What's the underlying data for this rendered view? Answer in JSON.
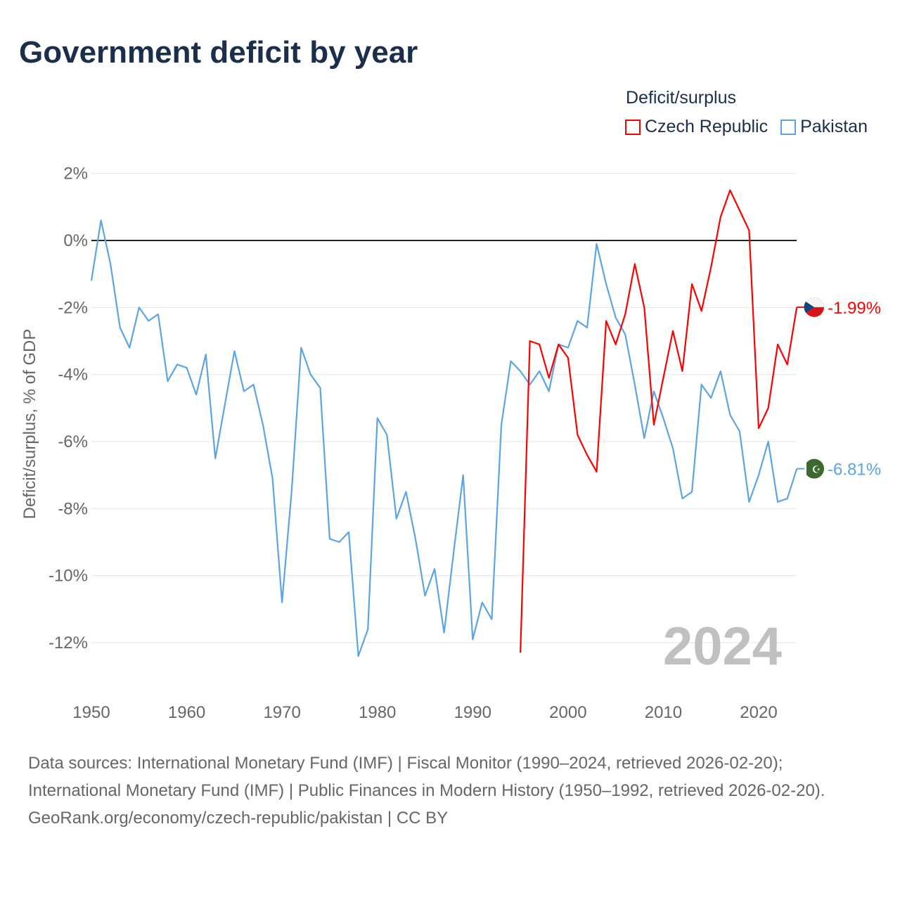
{
  "title": "Government deficit by year",
  "chart_data": {
    "type": "line",
    "title": "Government deficit by year",
    "xlabel": "",
    "ylabel": "Deficit/surplus, % of GDP",
    "xlim": [
      1950,
      2024
    ],
    "ylim": [
      -13,
      2
    ],
    "x_ticks": [
      1950,
      1960,
      1970,
      1980,
      1990,
      2000,
      2010,
      2020
    ],
    "y_ticks": [
      2,
      0,
      -2,
      -4,
      -6,
      -8,
      -10,
      -12
    ],
    "y_tick_labels": [
      "2%",
      "0%",
      "-2%",
      "-4%",
      "-6%",
      "-8%",
      "-10%",
      "-12%"
    ],
    "x_tick_labels": [
      "1950",
      "1960",
      "1970",
      "1980",
      "1990",
      "2000",
      "2010",
      "2020"
    ],
    "legend_title": "Deficit/surplus",
    "legend_placement": "top-right",
    "year_watermark": "2024",
    "series": [
      {
        "name": "Czech Republic",
        "color": "#ff0000",
        "end_label": "-1.99%",
        "start_year": 1995,
        "values": [
          -12.3,
          -3.0,
          -3.1,
          -4.1,
          -3.1,
          -3.5,
          -5.8,
          -6.4,
          -6.9,
          -2.4,
          -3.1,
          -2.2,
          -0.7,
          -2.0,
          -5.5,
          -4.1,
          -2.7,
          -3.9,
          -1.3,
          -2.1,
          -0.8,
          0.7,
          1.5,
          0.9,
          0.3,
          -5.6,
          -5.0,
          -3.1,
          -3.7,
          -1.99
        ]
      },
      {
        "name": "Pakistan",
        "color": "#5ba4e6",
        "end_label": "-6.81%",
        "start_year": 1950,
        "values": [
          -1.2,
          0.6,
          -0.7,
          -2.6,
          -3.2,
          -2.0,
          -2.4,
          -2.2,
          -4.2,
          -3.7,
          -3.8,
          -4.6,
          -3.4,
          -6.5,
          -4.9,
          -3.3,
          -4.5,
          -4.3,
          -5.5,
          -7.1,
          -10.8,
          -7.5,
          -3.2,
          -4.0,
          -4.4,
          -8.9,
          -9.0,
          -8.7,
          -12.4,
          -11.6,
          -5.3,
          -5.8,
          -8.3,
          -7.5,
          -8.9,
          -10.6,
          -9.8,
          -11.7,
          -9.3,
          -7.0,
          -11.9,
          -10.8,
          -11.3,
          -5.5,
          -3.6,
          -3.9,
          -4.3,
          -3.9,
          -4.5,
          -3.1,
          -3.2,
          -2.4,
          -2.6,
          -0.1,
          -1.3,
          -2.3,
          -2.8,
          -4.3,
          -5.9,
          -4.5,
          -5.3,
          -6.2,
          -7.7,
          -7.5,
          -4.3,
          -4.7,
          -3.9,
          -5.2,
          -5.7,
          -7.8,
          -7.0,
          -6.0,
          -7.8,
          -7.7,
          -6.81
        ]
      }
    ]
  },
  "footer": {
    "sources": "Data sources: International Monetary Fund (IMF) | Fiscal Monitor (1990–2024, retrieved 2026-02-20); International Monetary Fund (IMF) | Public Finances in Modern History (1950–1992, retrieved 2026-02-20).",
    "credit": "GeoRank.org/economy/czech-republic/pakistan | CC BY"
  }
}
